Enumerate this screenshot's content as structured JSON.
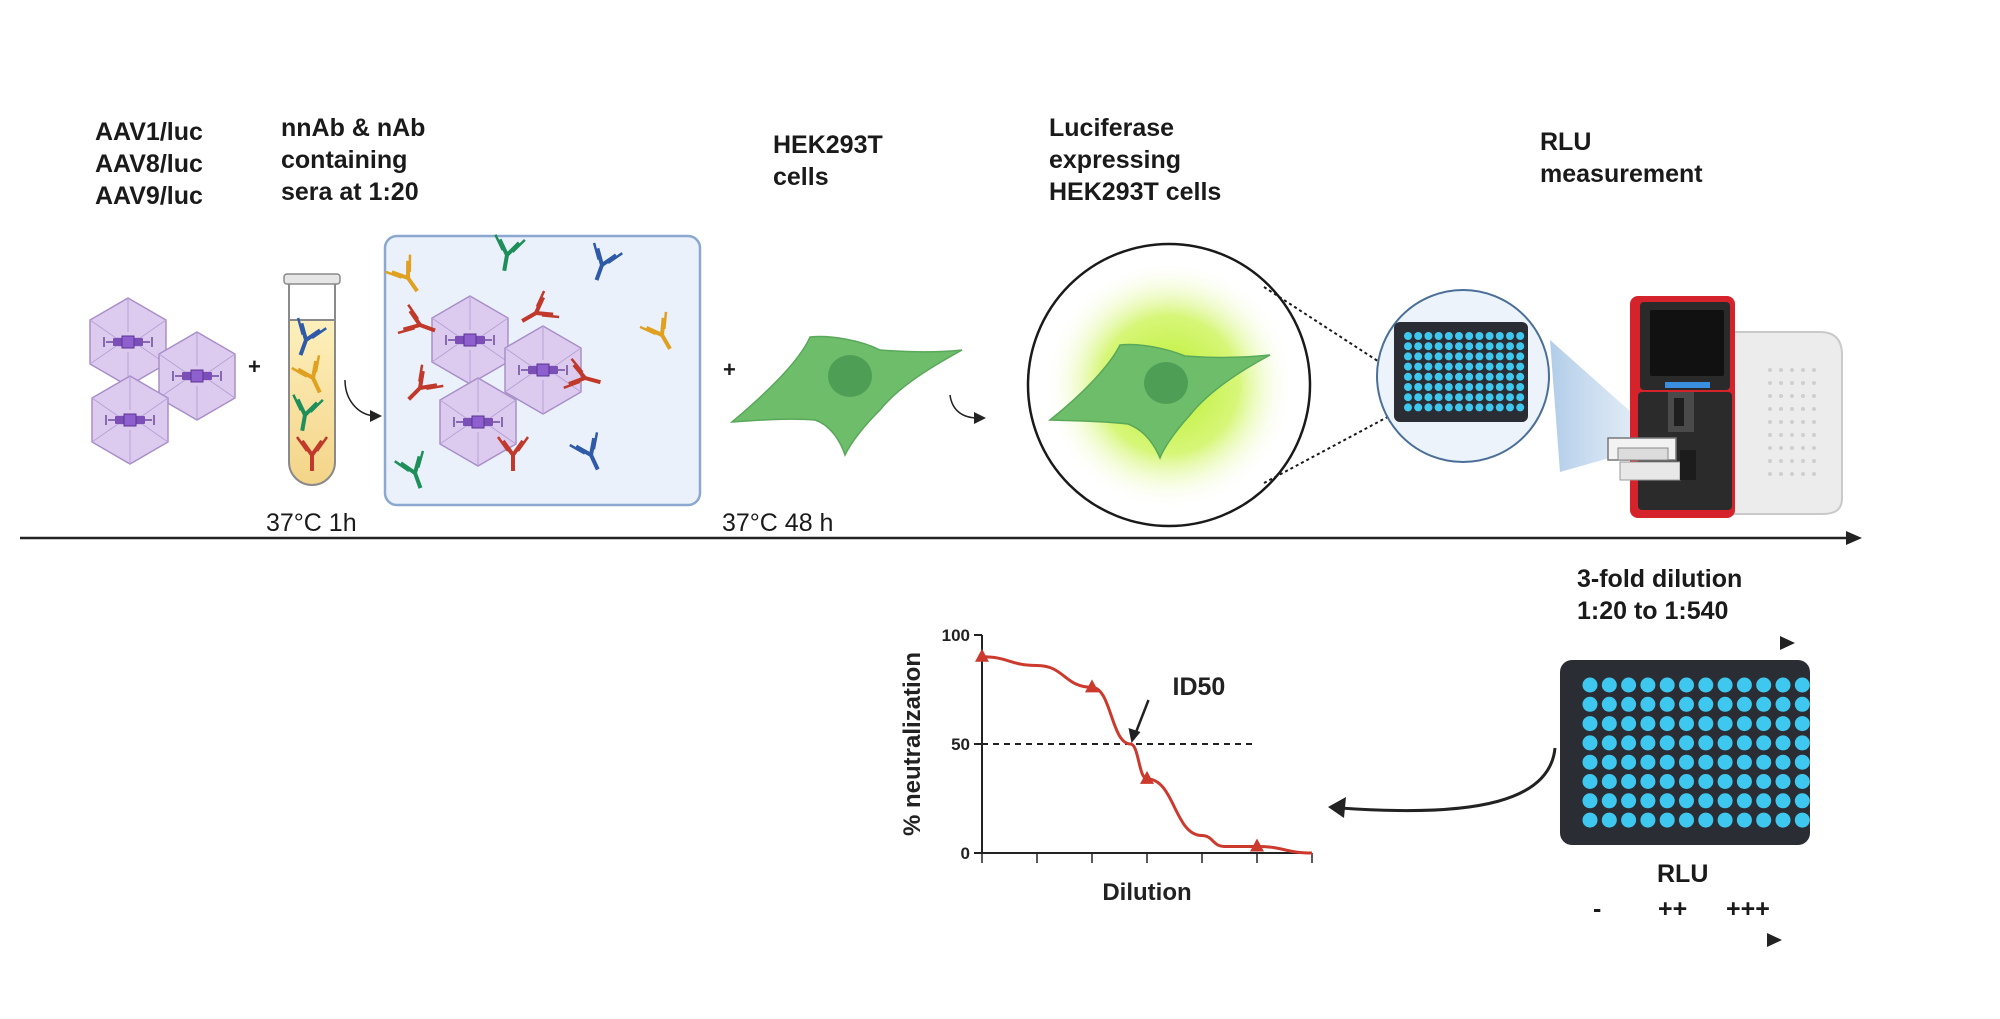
{
  "steps": {
    "aav": {
      "lines": [
        "AAV1/luc",
        "AAV8/luc",
        "AAV9/luc"
      ]
    },
    "sera": {
      "lines": [
        "nnAb & nAb",
        "containing",
        "sera at 1:20"
      ]
    },
    "cells": {
      "lines": [
        "HEK293T",
        "cells"
      ]
    },
    "luciferase": {
      "lines": [
        "Luciferase",
        "expressing",
        "HEK293T cells"
      ]
    },
    "rlu_measure": {
      "lines": [
        "RLU",
        "measurement"
      ]
    }
  },
  "conditions": {
    "incubation1": "37°C 1h",
    "incubation2": "37°C 48 h"
  },
  "plus_sign": "+",
  "dilution": {
    "lines": [
      "3-fold dilution",
      "1:20 to 1:540"
    ]
  },
  "rlu_scale": {
    "title": "RLU",
    "low": "-",
    "mid": "++",
    "high": "+++"
  },
  "colors": {
    "capsid": "#d8c7ec",
    "capsid_stroke": "#a98fc9",
    "mix_box_fill": "#eaf1fb",
    "mix_box_stroke": "#8aa8d0",
    "cell": "#6dbd6b",
    "cell_nucleus": "#4f9e55",
    "glow": "#b8ef2a",
    "well": "#3ec8ef",
    "plate": "#2a2d33",
    "curve": "#cc3a2e",
    "ab_red": "#c0392b",
    "ab_blue": "#2f5aa8",
    "ab_green": "#1e8f5a",
    "ab_orange": "#e0a020",
    "reader_red": "#d4232a"
  },
  "chart_data": {
    "type": "line",
    "title": "",
    "xlabel": "Dilution",
    "ylabel": "% neutralization",
    "ylim": [
      0,
      100
    ],
    "yticks": [
      "0",
      "50",
      "100"
    ],
    "x": [
      0,
      1,
      2,
      2.7,
      3,
      4,
      4.4,
      5,
      6
    ],
    "values": [
      90,
      86,
      76,
      50,
      34,
      8,
      3,
      3,
      0
    ],
    "markers": [
      0,
      2,
      4,
      7
    ],
    "reference_line": 50,
    "annotation": "ID50"
  }
}
